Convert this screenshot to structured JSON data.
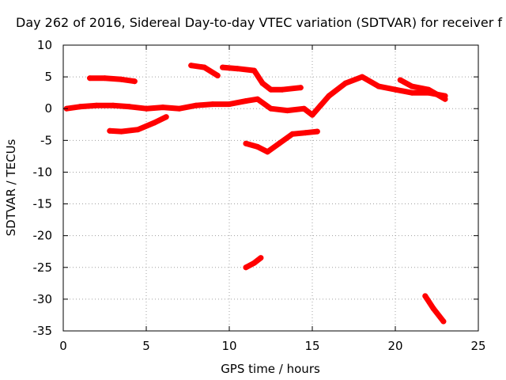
{
  "chart_data": {
    "type": "scatter",
    "title": "Day 262 of 2016, Sidereal Day-to-day VTEC variation (SDTVAR) for receiver f",
    "xlabel": "GPS time / hours",
    "ylabel": "SDTVAR / TECUs",
    "xlim": [
      0,
      25
    ],
    "ylim": [
      -35,
      10
    ],
    "xticks": [
      0,
      5,
      10,
      15,
      20,
      25
    ],
    "yticks": [
      10,
      5,
      0,
      -5,
      -10,
      -15,
      -20,
      -25,
      -30,
      -35
    ],
    "grid": true,
    "series": [
      {
        "color": "#ff0000",
        "x": [
          0.2,
          1.0,
          2.0,
          3.0,
          4.0,
          5.0,
          6.0,
          7.0,
          8.0,
          9.0,
          10.0,
          11.0,
          11.7,
          12.5,
          13.5,
          14.5,
          15.0,
          15.5,
          16.0,
          17.0,
          18.0,
          19.0,
          20.0,
          21.0,
          22.0,
          23.0
        ],
        "y": [
          0.0,
          0.3,
          0.5,
          0.5,
          0.3,
          0.0,
          0.2,
          0.0,
          0.5,
          0.7,
          0.7,
          1.2,
          1.5,
          0.0,
          -0.3,
          0.0,
          -1.0,
          0.5,
          2.0,
          4.0,
          5.0,
          3.5,
          3.0,
          2.5,
          2.5,
          2.0
        ]
      },
      {
        "color": "#ff0000",
        "x": [
          1.6,
          2.5,
          3.5,
          4.3
        ],
        "y": [
          4.8,
          4.8,
          4.6,
          4.3
        ]
      },
      {
        "color": "#ff0000",
        "x": [
          2.8,
          3.5,
          4.5,
          5.5,
          6.2
        ],
        "y": [
          -3.5,
          -3.6,
          -3.3,
          -2.2,
          -1.3
        ]
      },
      {
        "color": "#ff0000",
        "x": [
          7.7,
          8.5,
          9.3
        ],
        "y": [
          6.8,
          6.5,
          5.2
        ]
      },
      {
        "color": "#ff0000",
        "x": [
          9.6,
          10.5,
          11.5,
          12.0,
          12.5,
          13.2,
          14.3
        ],
        "y": [
          6.5,
          6.3,
          6.0,
          4.0,
          3.0,
          3.0,
          3.3
        ]
      },
      {
        "color": "#ff0000",
        "x": [
          11.0,
          11.7,
          12.3,
          13.0,
          13.8,
          14.6,
          15.3
        ],
        "y": [
          -5.5,
          -6.0,
          -6.8,
          -5.5,
          -4.0,
          -3.8,
          -3.6
        ]
      },
      {
        "color": "#ff0000",
        "x": [
          11.0,
          11.5,
          11.9
        ],
        "y": [
          -25.0,
          -24.3,
          -23.5
        ]
      },
      {
        "color": "#ff0000",
        "x": [
          21.8,
          22.3,
          22.9
        ],
        "y": [
          -29.5,
          -31.5,
          -33.5
        ]
      },
      {
        "color": "#ff0000",
        "x": [
          20.3,
          21.0,
          22.0,
          23.0
        ],
        "y": [
          4.5,
          3.5,
          3.0,
          1.5
        ]
      }
    ]
  }
}
